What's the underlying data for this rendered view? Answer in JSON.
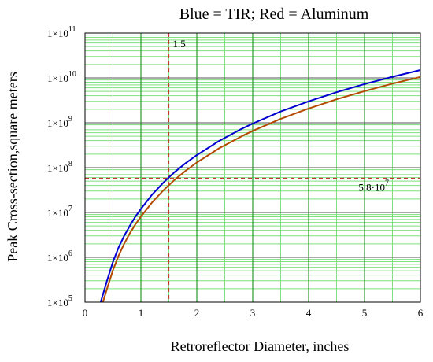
{
  "chart_data": {
    "type": "line",
    "title": "Blue = TIR; Red = Aluminum",
    "xlabel": "Retroreflector Diameter, inches",
    "ylabel": "Peak Cross-section,square meters",
    "xlim": [
      0,
      6
    ],
    "ylim": [
      100000,
      100000000000
    ],
    "yscale": "log",
    "grid": true,
    "x_ticks": [
      {
        "value": 0,
        "label": "0"
      },
      {
        "value": 1,
        "label": "1"
      },
      {
        "value": 2,
        "label": "2"
      },
      {
        "value": 3,
        "label": "3"
      },
      {
        "value": 4,
        "label": "4"
      },
      {
        "value": 5,
        "label": "5"
      },
      {
        "value": 6,
        "label": "6"
      }
    ],
    "y_ticks": [
      {
        "value": 100000,
        "base": "1×10",
        "exp": "5"
      },
      {
        "value": 1000000,
        "base": "1×10",
        "exp": "6"
      },
      {
        "value": 10000000,
        "base": "1×10",
        "exp": "7"
      },
      {
        "value": 100000000,
        "base": "1×10",
        "exp": "8"
      },
      {
        "value": 1000000000,
        "base": "1×10",
        "exp": "9"
      },
      {
        "value": 10000000000,
        "base": "1×10",
        "exp": "10"
      },
      {
        "value": 100000000000,
        "base": "1×10",
        "exp": "11"
      }
    ],
    "series": [
      {
        "color": "#0000d0",
        "x": [
          0.28,
          0.4,
          0.5,
          0.6,
          0.7,
          0.8,
          0.9,
          1.0,
          1.2,
          1.4,
          1.6,
          1.8,
          2.0,
          2.4,
          2.8,
          3.0,
          3.5,
          4.0,
          4.5,
          5.0,
          5.5,
          6.0
        ],
        "y": [
          100000,
          320000,
          790000,
          1650000,
          3000000,
          5000000,
          8000000,
          12000000,
          25000000,
          46000000,
          79000000,
          126000000,
          190000000,
          395000000,
          730000000,
          960000000,
          1780000000,
          3000000000,
          4800000000,
          7300000000,
          10600000000,
          15000000000
        ]
      },
      {
        "color": "#b34a00",
        "x": [
          0.32,
          0.4,
          0.5,
          0.6,
          0.7,
          0.8,
          0.9,
          1.0,
          1.2,
          1.4,
          1.6,
          1.8,
          2.0,
          2.4,
          2.8,
          3.0,
          3.5,
          4.0,
          4.5,
          5.0,
          5.5,
          6.0
        ],
        "y": [
          100000,
          210000,
          520000,
          1080000,
          2000000,
          3400000,
          5400000,
          8100000,
          16800000,
          31000000,
          53000000,
          85000000,
          130000000,
          270000000,
          500000000,
          660000000,
          1220000000,
          2080000000,
          3330000000,
          5080000000,
          7440000000,
          10500000000
        ]
      }
    ],
    "annotations": [
      {
        "type": "vline",
        "x": 1.5,
        "label": "1.5",
        "color": "#c0392b"
      },
      {
        "type": "hline",
        "y": 58000000,
        "base": "5.8·10",
        "exp": "7",
        "color": "#c0392b"
      }
    ]
  }
}
